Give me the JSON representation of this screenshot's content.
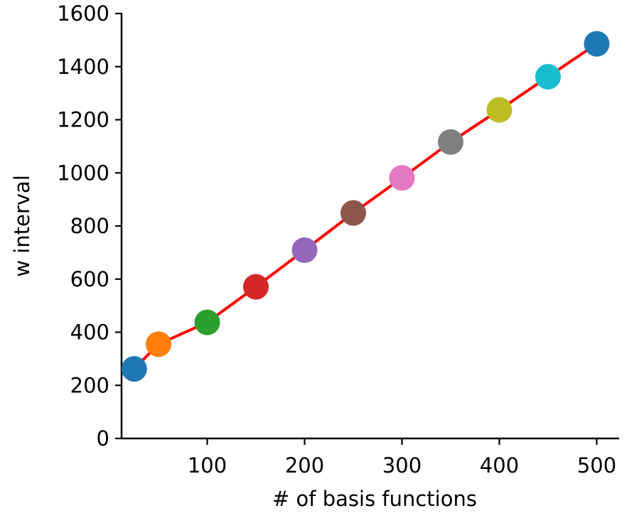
{
  "chart_data": {
    "type": "line",
    "title": "",
    "xlabel": "# of basis functions",
    "ylabel": "w interval",
    "xlim": [
      12,
      523
    ],
    "ylim": [
      0,
      1600
    ],
    "xticks": [
      100,
      200,
      300,
      400,
      500
    ],
    "xtick_labels": [
      "100",
      "200",
      "300",
      "400",
      "500"
    ],
    "yticks": [
      0,
      200,
      400,
      600,
      800,
      1000,
      1200,
      1400,
      1600
    ],
    "ytick_labels": [
      "0",
      "200",
      "400",
      "600",
      "800",
      "1000",
      "1200",
      "1400",
      "1600"
    ],
    "grid": false,
    "legend": "none",
    "line_color": "#ff0000",
    "series": [
      {
        "x": [
          25,
          50,
          100,
          150,
          200,
          250,
          300,
          350,
          400,
          450,
          500
        ],
        "y": [
          262,
          355,
          437,
          571,
          709,
          849,
          981,
          1116,
          1237,
          1362,
          1486
        ]
      }
    ],
    "point_colors": [
      "#1f77b4",
      "#ff7f0e",
      "#2ca02c",
      "#d62728",
      "#9467bd",
      "#8c564b",
      "#e377c2",
      "#7f7f7f",
      "#bcbd22",
      "#17becf",
      "#1f77b4"
    ]
  }
}
